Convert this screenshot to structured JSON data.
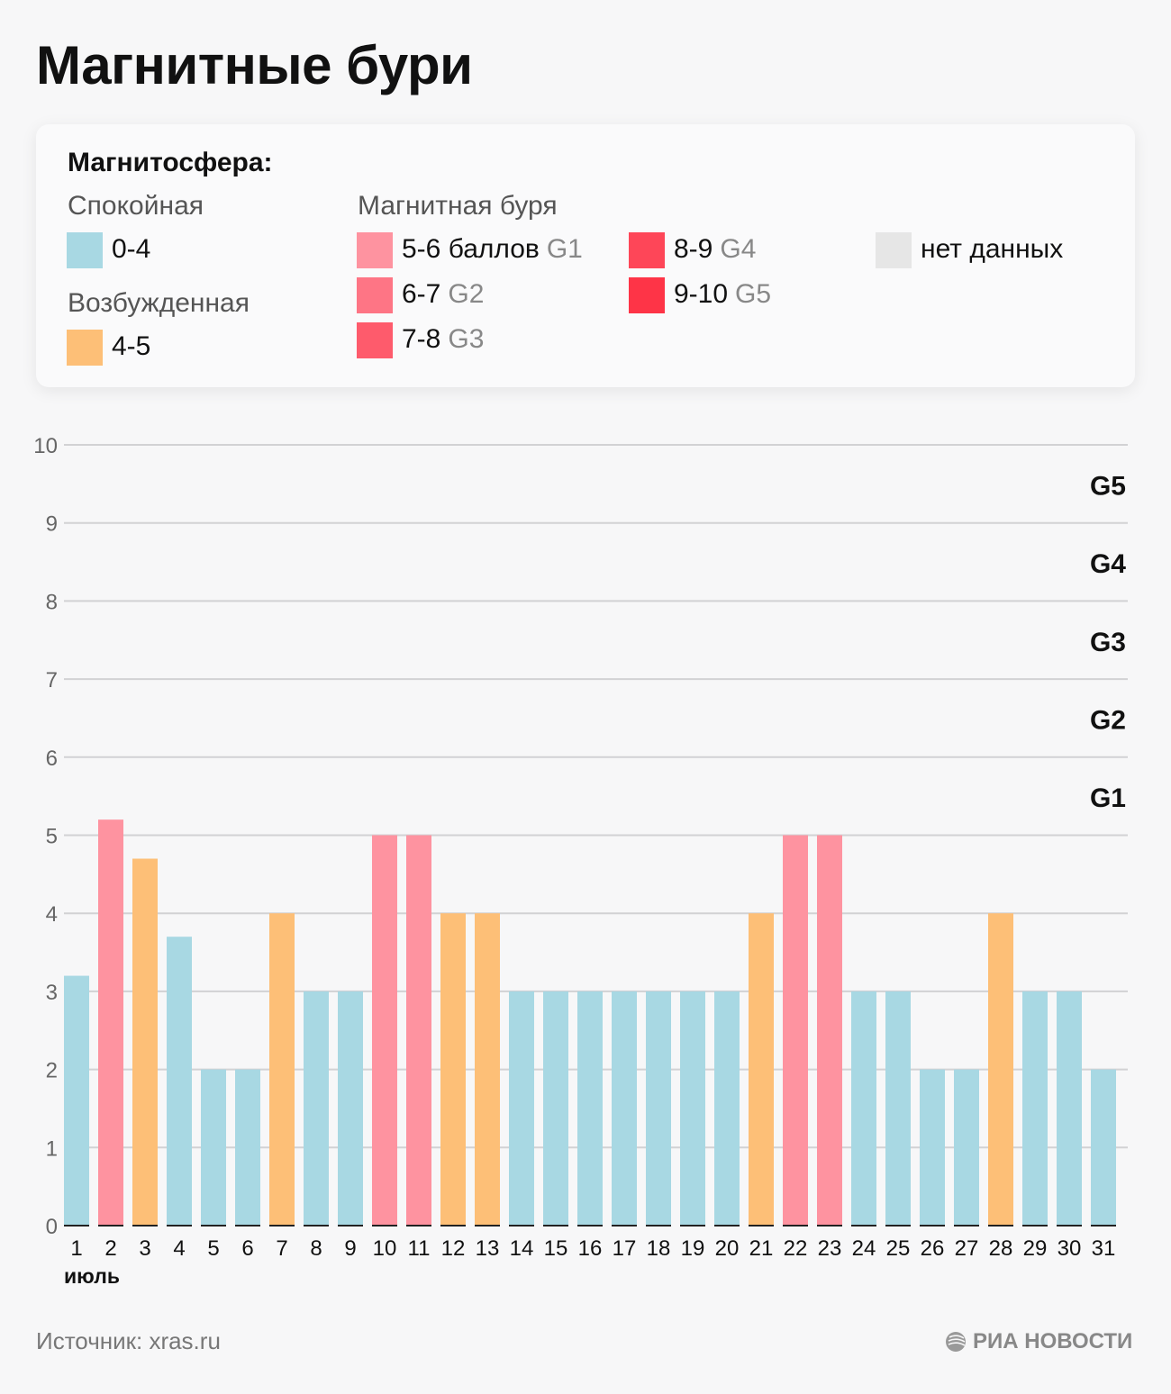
{
  "title": "Магнитные бури",
  "legend": {
    "heading": "Магнитосфера:",
    "calm": {
      "label": "Спокойная",
      "items": [
        {
          "range": "0-4",
          "color": "#a8d8e3"
        }
      ]
    },
    "excited": {
      "label": "Возбужденная",
      "items": [
        {
          "range": "4-5",
          "color": "#fdbf77"
        }
      ]
    },
    "storm": {
      "label": "Магнитная буря",
      "items": [
        {
          "range": "5-6 баллов",
          "g": "G1",
          "color": "#fe93a0"
        },
        {
          "range": "6-7",
          "g": "G2",
          "color": "#fe7585"
        },
        {
          "range": "7-8",
          "g": "G3",
          "color": "#fe5b6c"
        },
        {
          "range": "8-9",
          "g": "G4",
          "color": "#fe4658"
        },
        {
          "range": "9-10",
          "g": "G5",
          "color": "#fe3447"
        }
      ]
    },
    "nodata": {
      "label": "нет данных",
      "color": "#e6e6e6"
    }
  },
  "chart_data": {
    "type": "bar",
    "title": "Магнитные бури",
    "xlabel": "июль",
    "ylabel": "",
    "ylim": [
      0,
      10
    ],
    "yticks": [
      "0",
      "1",
      "2",
      "3",
      "4",
      "5",
      "6",
      "7",
      "8",
      "9",
      "10"
    ],
    "grid": true,
    "categories": [
      "1",
      "2",
      "3",
      "4",
      "5",
      "6",
      "7",
      "8",
      "9",
      "10",
      "11",
      "12",
      "13",
      "14",
      "15",
      "16",
      "17",
      "18",
      "19",
      "20",
      "21",
      "22",
      "23",
      "24",
      "25",
      "26",
      "27",
      "28",
      "29",
      "30",
      "31"
    ],
    "values": [
      3.2,
      5.2,
      4.7,
      3.7,
      2,
      2,
      4,
      3,
      3,
      5,
      5,
      4,
      4,
      3,
      3,
      3,
      3,
      3,
      3,
      3,
      4,
      5,
      5,
      3,
      3,
      2,
      2,
      4,
      3,
      3,
      2
    ],
    "level_labels": [
      {
        "label": "G1",
        "from": 5,
        "to": 6
      },
      {
        "label": "G2",
        "from": 6,
        "to": 7
      },
      {
        "label": "G3",
        "from": 7,
        "to": 8
      },
      {
        "label": "G4",
        "from": 8,
        "to": 9
      },
      {
        "label": "G5",
        "from": 9,
        "to": 10
      }
    ]
  },
  "footer": {
    "source": "Источник: xras.ru",
    "logo": "РИА НОВОСТИ"
  }
}
